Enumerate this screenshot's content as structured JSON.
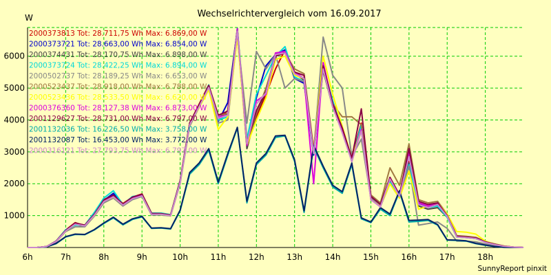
{
  "chart_data": {
    "type": "line",
    "title": "Wechselrichtervergleich vom 16.09.2017",
    "ylabel": "W",
    "xlabel": "",
    "footer": "SunnyReport pinxit",
    "xlim": [
      6,
      19
    ],
    "ylim": [
      0,
      6900
    ],
    "x_ticks": [
      {
        "value": 6,
        "label": "6h"
      },
      {
        "value": 7,
        "label": "7h"
      },
      {
        "value": 8,
        "label": "8h"
      },
      {
        "value": 9,
        "label": "9h"
      },
      {
        "value": 10,
        "label": "10h"
      },
      {
        "value": 11,
        "label": "11h"
      },
      {
        "value": 12,
        "label": "12h"
      },
      {
        "value": 13,
        "label": "13h"
      },
      {
        "value": 14,
        "label": "14h"
      },
      {
        "value": 15,
        "label": "15h"
      },
      {
        "value": 16,
        "label": "16h"
      },
      {
        "value": 17,
        "label": "17h"
      },
      {
        "value": 18,
        "label": "18h"
      }
    ],
    "y_ticks": [
      {
        "value": 1000,
        "label": "1000"
      },
      {
        "value": 2000,
        "label": "2000"
      },
      {
        "value": 3000,
        "label": "3000"
      },
      {
        "value": 4000,
        "label": "4000"
      },
      {
        "value": 5000,
        "label": "5000"
      },
      {
        "value": 6000,
        "label": "6000"
      }
    ],
    "y_gridlines": [
      1000,
      2000,
      3000,
      4000,
      5000,
      6000,
      6900
    ],
    "grid": true,
    "legend_position": "top-left",
    "x": [
      6.0,
      6.25,
      6.5,
      6.75,
      7.0,
      7.25,
      7.5,
      7.75,
      8.0,
      8.25,
      8.5,
      8.75,
      9.0,
      9.25,
      9.5,
      9.75,
      10.0,
      10.25,
      10.5,
      10.75,
      11.0,
      11.25,
      11.5,
      11.75,
      12.0,
      12.25,
      12.5,
      12.75,
      13.0,
      13.25,
      13.5,
      13.75,
      14.0,
      14.25,
      14.5,
      14.75,
      15.0,
      15.25,
      15.5,
      15.75,
      16.0,
      16.25,
      16.5,
      16.75,
      17.0,
      17.25,
      17.5,
      17.75,
      18.0,
      18.25,
      18.5,
      18.75,
      19.0
    ],
    "series": [
      {
        "name": "2000373813",
        "legend": "2000373813 Tot: 28.711,75 Wh Max: 6.869,00 W",
        "color": "#cc0000",
        "values": [
          0,
          0,
          30,
          200,
          550,
          780,
          680,
          1050,
          1500,
          1650,
          1380,
          1580,
          1680,
          1080,
          1050,
          1020,
          2100,
          3900,
          4500,
          5100,
          4000,
          4300,
          6850,
          3200,
          4100,
          4800,
          5600,
          6200,
          5500,
          5400,
          3000,
          5600,
          4500,
          3700,
          2800,
          3900,
          1600,
          1350,
          2100,
          1650,
          2700,
          1400,
          1300,
          1350,
          1000,
          350,
          330,
          300,
          180,
          100,
          40,
          10,
          0
        ]
      },
      {
        "name": "2000373721",
        "legend": "2000373721 Tot: 28.663,00 Wh Max: 6.854,00 W",
        "color": "#0000cc",
        "values": [
          0,
          0,
          30,
          200,
          540,
          760,
          700,
          1050,
          1480,
          1700,
          1350,
          1560,
          1650,
          1060,
          1060,
          1010,
          2080,
          3880,
          4480,
          5050,
          3950,
          4550,
          6830,
          3300,
          4700,
          5700,
          6050,
          6200,
          5300,
          5150,
          2900,
          5650,
          4600,
          3650,
          2750,
          3850,
          1580,
          1330,
          2050,
          1600,
          2650,
          1380,
          1280,
          1330,
          980,
          340,
          320,
          290,
          170,
          95,
          35,
          10,
          0
        ]
      },
      {
        "name": "2000374431",
        "legend": "2000374431 Tot: 28.170,75 Wh Max: 6.898,00 W",
        "color": "#444444",
        "values": [
          0,
          0,
          30,
          190,
          520,
          720,
          660,
          1000,
          1420,
          1600,
          1330,
          1520,
          1640,
          1040,
          1040,
          1000,
          2050,
          3850,
          4400,
          5000,
          4000,
          4200,
          6880,
          3100,
          4200,
          4900,
          6100,
          6150,
          5450,
          5250,
          2950,
          5550,
          4400,
          3650,
          2750,
          3800,
          1560,
          1300,
          2050,
          1580,
          2650,
          1300,
          1200,
          1250,
          950,
          330,
          310,
          280,
          170,
          90,
          35,
          10,
          0
        ]
      },
      {
        "name": "2000373724",
        "legend": "2000373724 Tot: 28.422,25 Wh Max: 6.894,00 W",
        "color": "#00d8d8",
        "values": [
          0,
          0,
          30,
          200,
          560,
          700,
          700,
          1100,
          1550,
          1780,
          1350,
          1600,
          1650,
          1080,
          1080,
          1030,
          2100,
          3900,
          4450,
          5100,
          4000,
          4100,
          6870,
          3400,
          4800,
          5400,
          6000,
          6300,
          5350,
          5200,
          2950,
          5700,
          4600,
          3650,
          2700,
          3850,
          1580,
          1300,
          2050,
          1550,
          2600,
          1350,
          1250,
          1300,
          950,
          330,
          310,
          280,
          170,
          90,
          35,
          10,
          0
        ]
      },
      {
        "name": "2000502737",
        "legend": "2000502737 Tot: 28.189,25 Wh Max: 6.653,00 W",
        "color": "#888888",
        "values": [
          0,
          0,
          30,
          180,
          500,
          650,
          650,
          980,
          1400,
          1550,
          1300,
          1500,
          1600,
          1020,
          1020,
          990,
          2000,
          3800,
          4400,
          4950,
          3900,
          4000,
          6650,
          3900,
          6150,
          5600,
          6050,
          5000,
          5300,
          5200,
          3000,
          6600,
          5400,
          5000,
          2850,
          3400,
          1550,
          1280,
          2000,
          1550,
          2550,
          700,
          750,
          800,
          600,
          200,
          200,
          180,
          110,
          60,
          25,
          5,
          0
        ]
      },
      {
        "name": "2000523437",
        "legend": "2000523437 Tot: 28.918,00 Wh Max: 6.788,00 W",
        "color": "#a07840",
        "values": [
          0,
          0,
          30,
          190,
          530,
          760,
          700,
          1020,
          1480,
          1600,
          1370,
          1570,
          1670,
          1070,
          1060,
          1020,
          2080,
          3900,
          4480,
          5080,
          4150,
          4200,
          6780,
          3300,
          4200,
          5000,
          6000,
          6100,
          5600,
          5450,
          3100,
          5600,
          4500,
          4100,
          4100,
          3850,
          1650,
          1400,
          2500,
          1950,
          3250,
          1500,
          1400,
          1450,
          1050,
          370,
          350,
          320,
          190,
          110,
          45,
          10,
          0
        ]
      },
      {
        "name": "2000523436",
        "legend": "2000523436 Tot: 28.533,50 Wh Max: 6.620,00 W",
        "color": "#ffff00",
        "values": [
          0,
          0,
          30,
          190,
          520,
          740,
          690,
          1000,
          1450,
          1580,
          1340,
          1540,
          1630,
          1050,
          1040,
          1000,
          2050,
          3850,
          4400,
          4950,
          3700,
          4100,
          6600,
          3200,
          4000,
          4700,
          5900,
          6000,
          5400,
          5300,
          3000,
          6000,
          4800,
          3800,
          2800,
          3700,
          1500,
          1300,
          2000,
          1550,
          2400,
          1200,
          1300,
          1400,
          1050,
          500,
          480,
          420,
          200,
          100,
          40,
          10,
          0
        ]
      },
      {
        "name": "2000376360",
        "legend": "2000376360 Tot: 28.127,38 Wh Max: 6.873,00 W",
        "color": "#dd00dd",
        "values": [
          0,
          0,
          30,
          190,
          530,
          740,
          680,
          1020,
          1460,
          1620,
          1340,
          1540,
          1640,
          1060,
          1050,
          1010,
          2060,
          3870,
          4430,
          5050,
          4100,
          4150,
          6860,
          3200,
          4600,
          4800,
          6100,
          6150,
          5500,
          5300,
          2000,
          5800,
          4500,
          3650,
          2700,
          3700,
          1500,
          1280,
          2200,
          1650,
          2950,
          1400,
          1300,
          1400,
          1000,
          340,
          320,
          290,
          170,
          90,
          35,
          10,
          0
        ]
      },
      {
        "name": "2001129627",
        "legend": "2001129627 Tot: 28.731,00 Wh Max: 6.797,00 W",
        "color": "#880044",
        "values": [
          0,
          0,
          30,
          200,
          540,
          770,
          700,
          1040,
          1490,
          1640,
          1360,
          1580,
          1670,
          1070,
          1060,
          1020,
          2090,
          3900,
          4480,
          5080,
          4150,
          4280,
          6790,
          3300,
          4300,
          4900,
          6000,
          6100,
          5500,
          5400,
          3000,
          5700,
          4500,
          3750,
          2800,
          4350,
          1600,
          1350,
          2200,
          1650,
          3100,
          1450,
          1350,
          1400,
          1000,
          350,
          330,
          300,
          180,
          100,
          40,
          10,
          0
        ]
      },
      {
        "name": "2001132036",
        "legend": "2001132036 Tot: 16.226,50 Wh Max: 3.758,00 W",
        "color": "#00aaaa",
        "values": [
          0,
          0,
          20,
          120,
          330,
          410,
          400,
          550,
          750,
          930,
          710,
          880,
          960,
          600,
          610,
          580,
          1150,
          2300,
          2600,
          3050,
          2000,
          2900,
          3750,
          1400,
          2600,
          2900,
          3450,
          3500,
          2700,
          1100,
          3150,
          2500,
          1900,
          1700,
          2600,
          900,
          780,
          1200,
          1000,
          1750,
          800,
          820,
          850,
          700,
          230,
          220,
          200,
          120,
          70,
          30,
          5,
          0,
          0
        ]
      },
      {
        "name": "2001132087",
        "legend": "2001132087 Tot: 16.453,00 Wh Max: 3.772,00 W",
        "color": "#002266",
        "values": [
          0,
          0,
          20,
          130,
          340,
          420,
          410,
          560,
          770,
          950,
          730,
          900,
          980,
          610,
          620,
          590,
          1170,
          2350,
          2650,
          3100,
          2050,
          2950,
          3770,
          1450,
          2650,
          2950,
          3500,
          3520,
          2750,
          1150,
          3200,
          2550,
          1950,
          1750,
          2650,
          930,
          800,
          1250,
          1050,
          1780,
          850,
          860,
          880,
          720,
          240,
          230,
          210,
          130,
          75,
          30,
          5,
          0,
          0
        ]
      },
      {
        "name": "2000316121",
        "legend": "2000316121 Tot: 27.793,75 Wh Max: 6.797,00 W",
        "color": "#cc88cc",
        "values": [
          0,
          0,
          30,
          190,
          520,
          730,
          680,
          1010,
          1440,
          1590,
          1330,
          1530,
          1620,
          1040,
          1040,
          1000,
          2040,
          3850,
          4420,
          5020,
          4050,
          4150,
          6790,
          3250,
          4500,
          4850,
          6050,
          6100,
          5450,
          5300,
          2950,
          5600,
          4400,
          3600,
          2700,
          3650,
          1500,
          1270,
          2150,
          1600,
          2850,
          1350,
          1250,
          1350,
          980,
          330,
          310,
          280,
          160,
          90,
          35,
          10,
          0
        ]
      }
    ]
  }
}
